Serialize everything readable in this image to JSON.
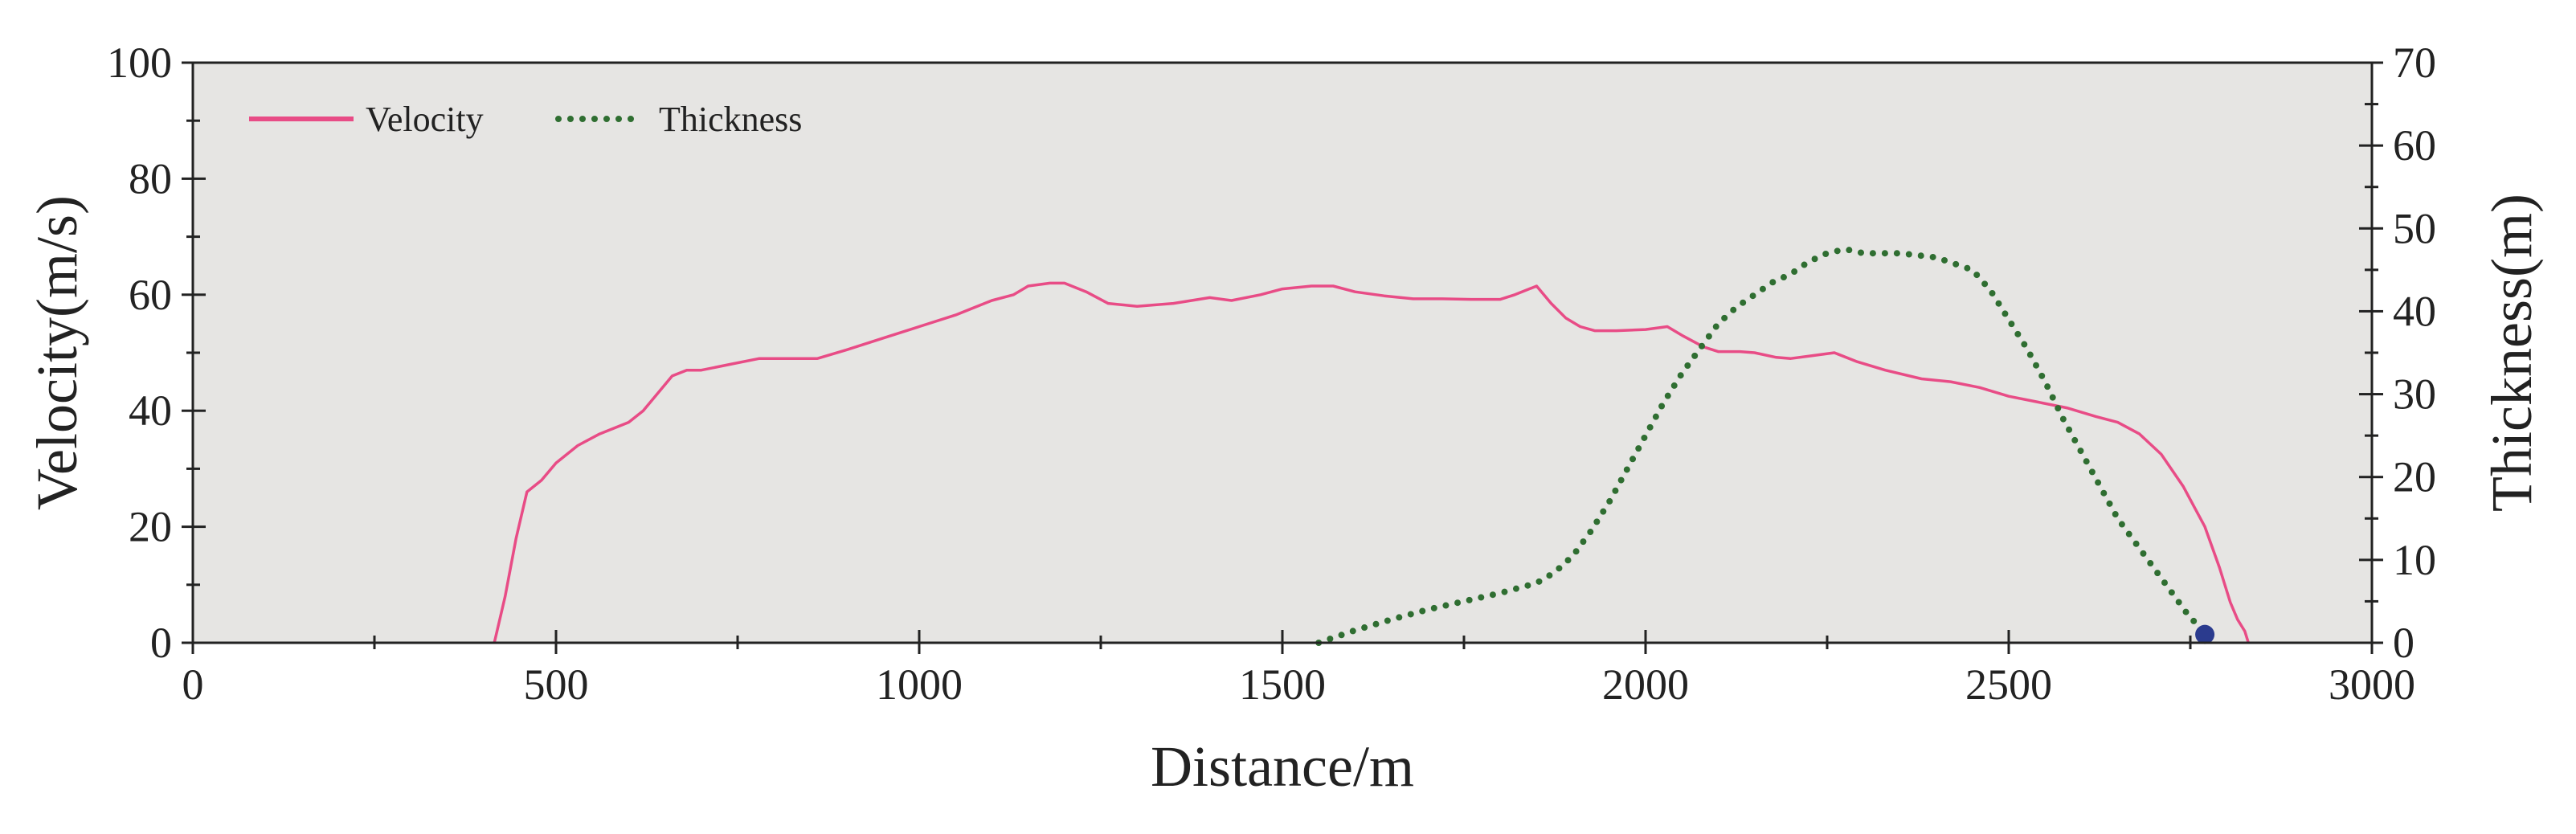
{
  "chart_data": {
    "type": "line",
    "xlabel": "Distance/m",
    "ylabel": "Velocity(m/s)",
    "y2label": "Thickness(m)",
    "xlim": [
      0,
      3000
    ],
    "ylim": [
      0,
      100
    ],
    "y2lim": [
      0,
      70
    ],
    "xticks": [
      "0",
      "500",
      "1000",
      "1500",
      "2000",
      "2500",
      "3000"
    ],
    "yticks": [
      "0",
      "20",
      "40",
      "60",
      "80",
      "100"
    ],
    "y2ticks": [
      "0",
      "10",
      "20",
      "30",
      "40",
      "50",
      "60",
      "70"
    ],
    "legend_position": "top-left",
    "grid": false,
    "background": "#e6e5e3",
    "series": [
      {
        "name": "Velocity",
        "axis": "left",
        "color": "#e84c86",
        "style": "solid",
        "x": [
          415,
          430,
          445,
          460,
          480,
          500,
          530,
          560,
          580,
          600,
          620,
          640,
          660,
          680,
          700,
          740,
          780,
          820,
          860,
          900,
          950,
          1000,
          1050,
          1080,
          1100,
          1130,
          1150,
          1180,
          1200,
          1230,
          1260,
          1300,
          1350,
          1400,
          1430,
          1470,
          1500,
          1540,
          1570,
          1600,
          1640,
          1680,
          1720,
          1760,
          1800,
          1820,
          1850,
          1870,
          1890,
          1910,
          1930,
          1960,
          2000,
          2030,
          2050,
          2080,
          2100,
          2130,
          2150,
          2180,
          2200,
          2230,
          2260,
          2290,
          2330,
          2380,
          2420,
          2460,
          2500,
          2540,
          2580,
          2620,
          2650,
          2680,
          2710,
          2740,
          2770,
          2790,
          2805,
          2815,
          2825,
          2830
        ],
        "y": [
          0,
          8,
          18,
          26,
          28,
          31,
          34,
          36,
          37,
          38,
          40,
          43,
          46,
          47,
          47,
          48,
          49,
          49,
          49,
          50.5,
          52.5,
          54.5,
          56.5,
          58,
          59,
          60,
          61.5,
          62,
          62,
          60.5,
          58.5,
          58,
          58.5,
          59.5,
          59,
          60,
          61,
          61.5,
          61.5,
          60.5,
          59.8,
          59.3,
          59.3,
          59.2,
          59.2,
          60,
          61.5,
          58.5,
          56,
          54.5,
          53.8,
          53.8,
          54,
          54.5,
          53,
          51,
          50.2,
          50.2,
          50,
          49.2,
          49,
          49.5,
          50,
          48.5,
          47,
          45.5,
          45,
          44,
          42.5,
          41.5,
          40.5,
          39,
          38,
          36,
          32.5,
          27,
          20,
          13,
          7,
          4,
          2,
          0
        ]
      },
      {
        "name": "Thickness",
        "axis": "right",
        "color": "#2f6e31",
        "style": "dotted",
        "x": [
          1550,
          1600,
          1650,
          1700,
          1750,
          1800,
          1850,
          1875,
          1900,
          1925,
          1950,
          1975,
          2000,
          2025,
          2050,
          2075,
          2100,
          2125,
          2150,
          2175,
          2200,
          2225,
          2250,
          2275,
          2300,
          2350,
          2400,
          2450,
          2475,
          2500,
          2525,
          2550,
          2575,
          2600,
          2625,
          2650,
          2675,
          2700,
          2725,
          2750,
          2775
        ],
        "y": [
          0,
          1.5,
          2.8,
          4.0,
          5.0,
          6.0,
          7.2,
          8.5,
          10.5,
          13.5,
          17,
          21,
          25,
          29,
          32.5,
          35.5,
          38.5,
          40.5,
          42,
          43.5,
          44.5,
          46,
          47,
          47.5,
          47,
          47,
          46.5,
          45,
          42.5,
          39,
          35.5,
          31.5,
          27,
          23,
          19,
          15,
          12,
          9,
          6,
          3,
          1
        ]
      }
    ],
    "marker": {
      "x": 2770,
      "y": 1,
      "axis": "right",
      "color": "#2b3b8e"
    }
  }
}
